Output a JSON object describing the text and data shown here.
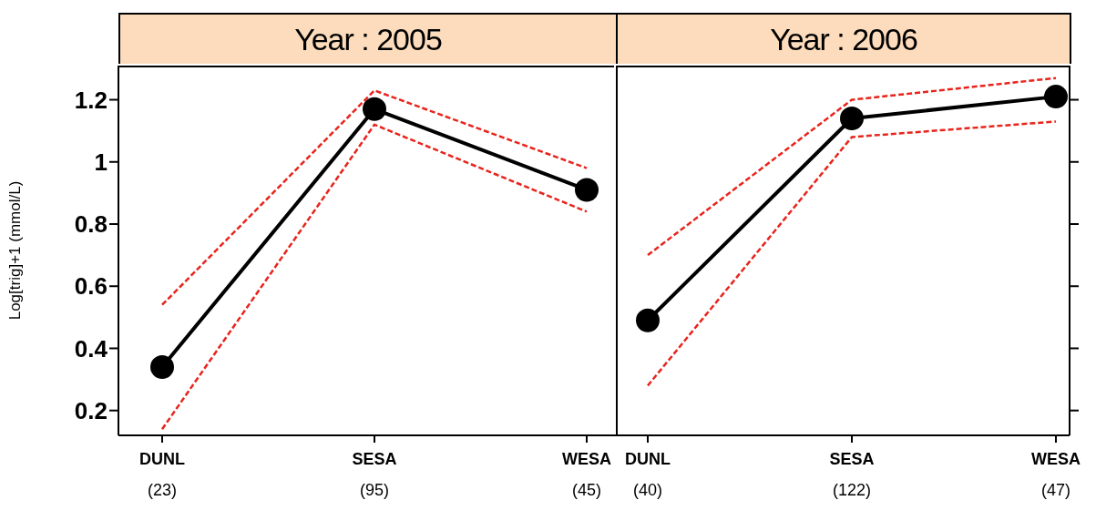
{
  "chart_data": [
    {
      "type": "line",
      "title": "Year : 2005",
      "ylabel": "Log[trig]+1 (mmol/L)",
      "categories": [
        "DUNL\n(23)",
        "SESA\n(95)",
        "WESA\n(45)"
      ],
      "ylim": [
        0.12,
        1.31
      ],
      "yticks": [
        {
          "value": 0.2,
          "label": "0.2"
        },
        {
          "value": 0.4,
          "label": "0.4"
        },
        {
          "value": 0.6,
          "label": "0.6"
        },
        {
          "value": 0.8,
          "label": "0.8"
        },
        {
          "value": 1,
          "label": "1"
        },
        {
          "value": 1.2,
          "label": "1.2"
        }
      ],
      "marker": "circle",
      "line_style": "solid",
      "legend": false,
      "series": [
        {
          "color": "#000000",
          "values": [
            0.34,
            1.17,
            0.91
          ]
        },
        {
          "color": "#e8241c",
          "values": [
            0.54,
            1.23,
            0.98
          ],
          "line_style": "dashed",
          "marker": "none"
        },
        {
          "color": "#e8241c",
          "values": [
            0.14,
            1.12,
            0.84
          ],
          "line_style": "dashed",
          "marker": "none"
        }
      ]
    },
    {
      "type": "line",
      "title": "Year : 2006",
      "categories": [
        "DUNL\n(40)",
        "SESA\n(122)",
        "WESA\n(47)"
      ],
      "ylim": [
        0.12,
        1.31
      ],
      "yticks": [
        {
          "value": 0.2,
          "label": null
        },
        {
          "value": 0.4,
          "label": null
        },
        {
          "value": 0.6,
          "label": null
        },
        {
          "value": 0.8,
          "label": null
        },
        {
          "value": 1,
          "label": null
        },
        {
          "value": 1.2,
          "label": null
        }
      ],
      "tick_labels": "x",
      "marker": "circle",
      "line_style": "solid",
      "legend": false,
      "series": [
        {
          "color": "#000000",
          "values": [
            0.49,
            1.14,
            1.21
          ]
        },
        {
          "color": "#e8241c",
          "values": [
            0.7,
            1.2,
            1.27
          ],
          "line_style": "dashed",
          "marker": "none"
        },
        {
          "color": "#e8241c",
          "values": [
            0.28,
            1.08,
            1.13
          ],
          "line_style": "dashed",
          "marker": "none"
        }
      ]
    }
  ]
}
